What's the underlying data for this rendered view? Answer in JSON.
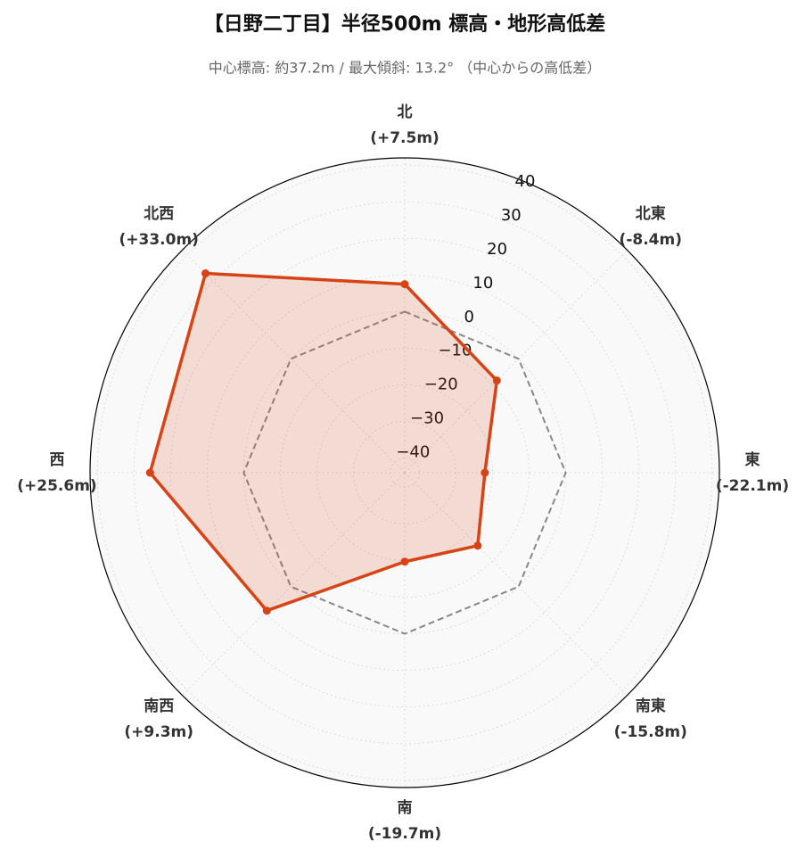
{
  "chart_data": {
    "type": "radar",
    "title": "【日野二丁目】半径500m 標高・地形高低差",
    "subtitle": "中心標高: 約37.2m / 最大傾斜: 13.2° （中心からの高低差）",
    "categories": [
      "北",
      "北東",
      "東",
      "南東",
      "南",
      "南西",
      "西",
      "北西"
    ],
    "series": [
      {
        "color": "#d84315",
        "values": [
          7.5,
          -8.4,
          -22.1,
          -15.8,
          -19.7,
          9.3,
          25.6,
          33.0
        ],
        "value_labels": [
          "(+7.5m)",
          "(-8.4m)",
          "(-22.1m)",
          "(-15.8m)",
          "(-19.7m)",
          "(+9.3m)",
          "(+25.6m)",
          "(+33.0m)"
        ]
      }
    ],
    "baseline": 0,
    "ylim": [
      -44,
      42
    ],
    "yticks": [
      {
        "value": -40,
        "label": "−40"
      },
      {
        "value": -30,
        "label": "−30"
      },
      {
        "value": -20,
        "label": "−20"
      },
      {
        "value": -10,
        "label": "−10"
      },
      0,
      10,
      20,
      30,
      40
    ],
    "grid": true
  }
}
